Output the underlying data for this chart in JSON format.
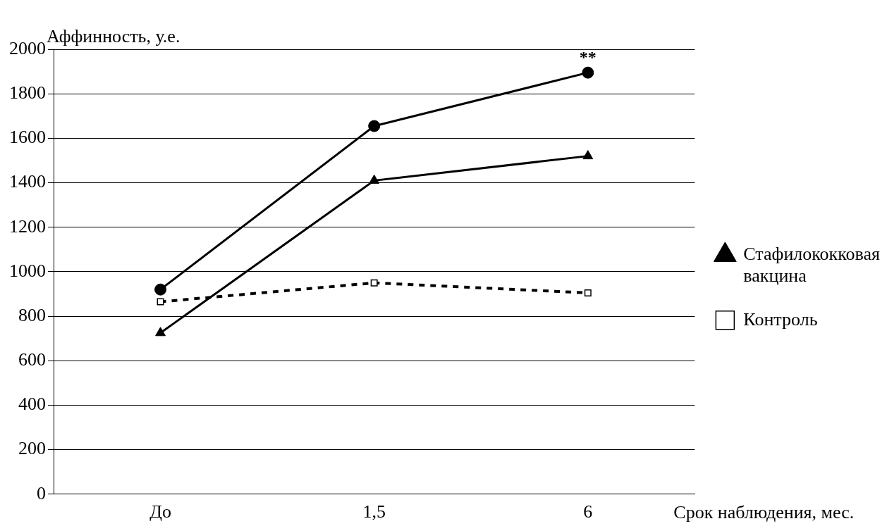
{
  "chart_data": {
    "type": "line",
    "xlabel": "Срок наблюдения, мес.",
    "ylabel": "Аффинность, у.е.",
    "categories": [
      "До",
      "1,5",
      "6"
    ],
    "series": [
      {
        "color": "#000000",
        "marker": "circle",
        "line_style": "solid",
        "values": [
          920,
          1655,
          1895
        ]
      },
      {
        "name": "Стафилококковая вакцина",
        "color": "#000000",
        "marker": "triangle",
        "line_style": "solid",
        "values": [
          725,
          1410,
          1520
        ]
      },
      {
        "name": "Контроль",
        "color": "#000000",
        "marker": "square",
        "line_style": "dashed",
        "values": [
          865,
          950,
          905
        ]
      }
    ],
    "ylim": [
      0,
      2000
    ],
    "yticks": [
      0,
      200,
      400,
      600,
      800,
      1000,
      1200,
      1400,
      1600,
      1800,
      2000
    ],
    "grid": "y",
    "legend": "right",
    "annotations": [
      {
        "text": "**",
        "x": "6",
        "y": 1895
      }
    ]
  }
}
